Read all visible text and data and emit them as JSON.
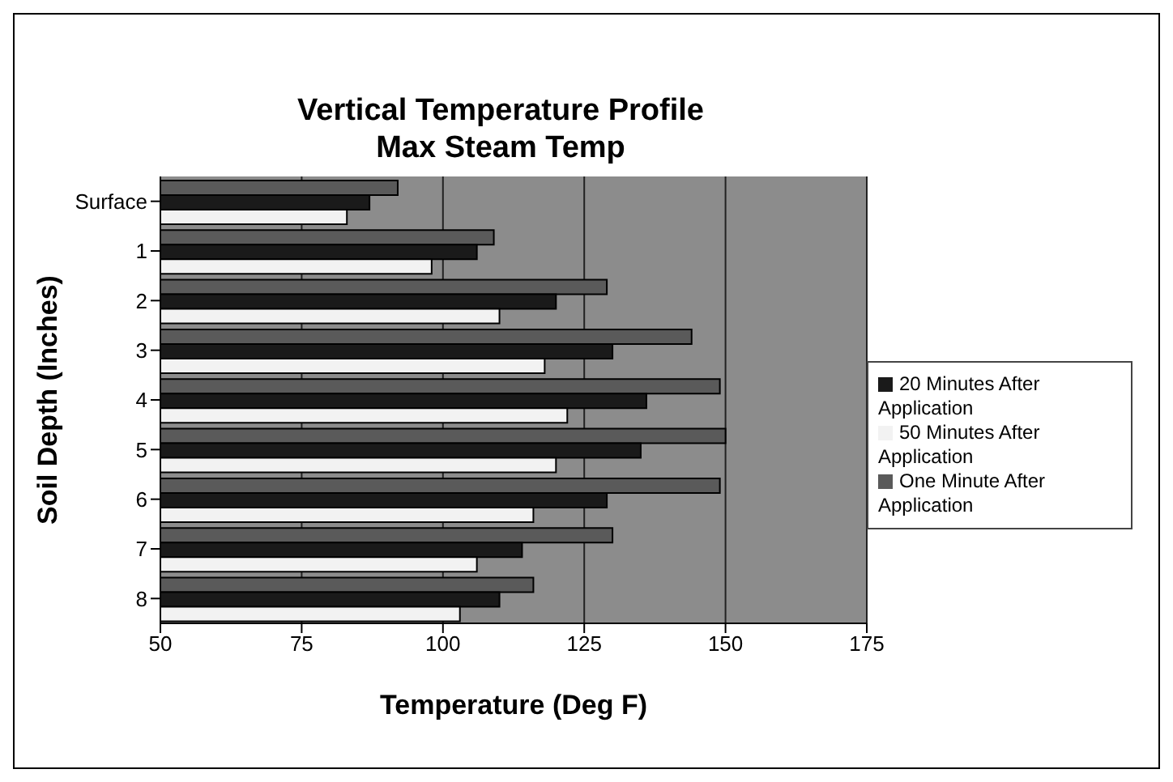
{
  "chart_data": {
    "type": "bar",
    "orientation": "horizontal",
    "title": "Vertical Temperature Profile",
    "subtitle": "Max Steam Temp",
    "xlabel": "Temperature (Deg F)",
    "ylabel": "Soil Depth (Inches)",
    "categories": [
      "Surface",
      "1",
      "2",
      "3",
      "4",
      "5",
      "6",
      "7",
      "8"
    ],
    "series": [
      {
        "name": "One Minute After Application",
        "color": "#5a5a5a",
        "values": [
          92,
          109,
          129,
          144,
          149,
          150,
          149,
          130,
          116
        ]
      },
      {
        "name": "20 Minutes After Application",
        "color": "#1a1a1a",
        "values": [
          87,
          106,
          120,
          130,
          136,
          135,
          129,
          114,
          110
        ]
      },
      {
        "name": "50 Minutes After Application",
        "color": "#f2f2f2",
        "values": [
          83,
          98,
          110,
          118,
          122,
          120,
          116,
          106,
          103
        ]
      }
    ],
    "xlim": [
      50,
      175
    ],
    "xticks": [
      50,
      75,
      100,
      125,
      150,
      175
    ],
    "grid": "x",
    "legend": "right"
  }
}
